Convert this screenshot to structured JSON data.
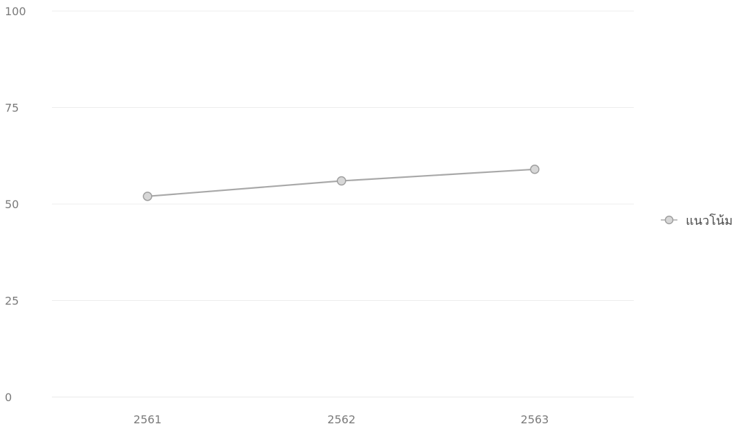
{
  "chart_data": {
    "type": "line",
    "categories": [
      "2561",
      "2562",
      "2563"
    ],
    "series": [
      {
        "name": "แนวโน้ม",
        "values": [
          52,
          56,
          59
        ]
      }
    ],
    "ylim": [
      0,
      100
    ],
    "yticks": [
      0,
      25,
      50,
      75,
      100
    ],
    "grid": true,
    "legend": "right",
    "colors": {
      "grid": "#ececec",
      "line": "#a8a8a8",
      "marker_fill": "#d7d7d7",
      "marker_stroke": "#9e9e9e",
      "tick_text": "#7a7a7a",
      "legend_text": "#4a4a4a"
    }
  }
}
